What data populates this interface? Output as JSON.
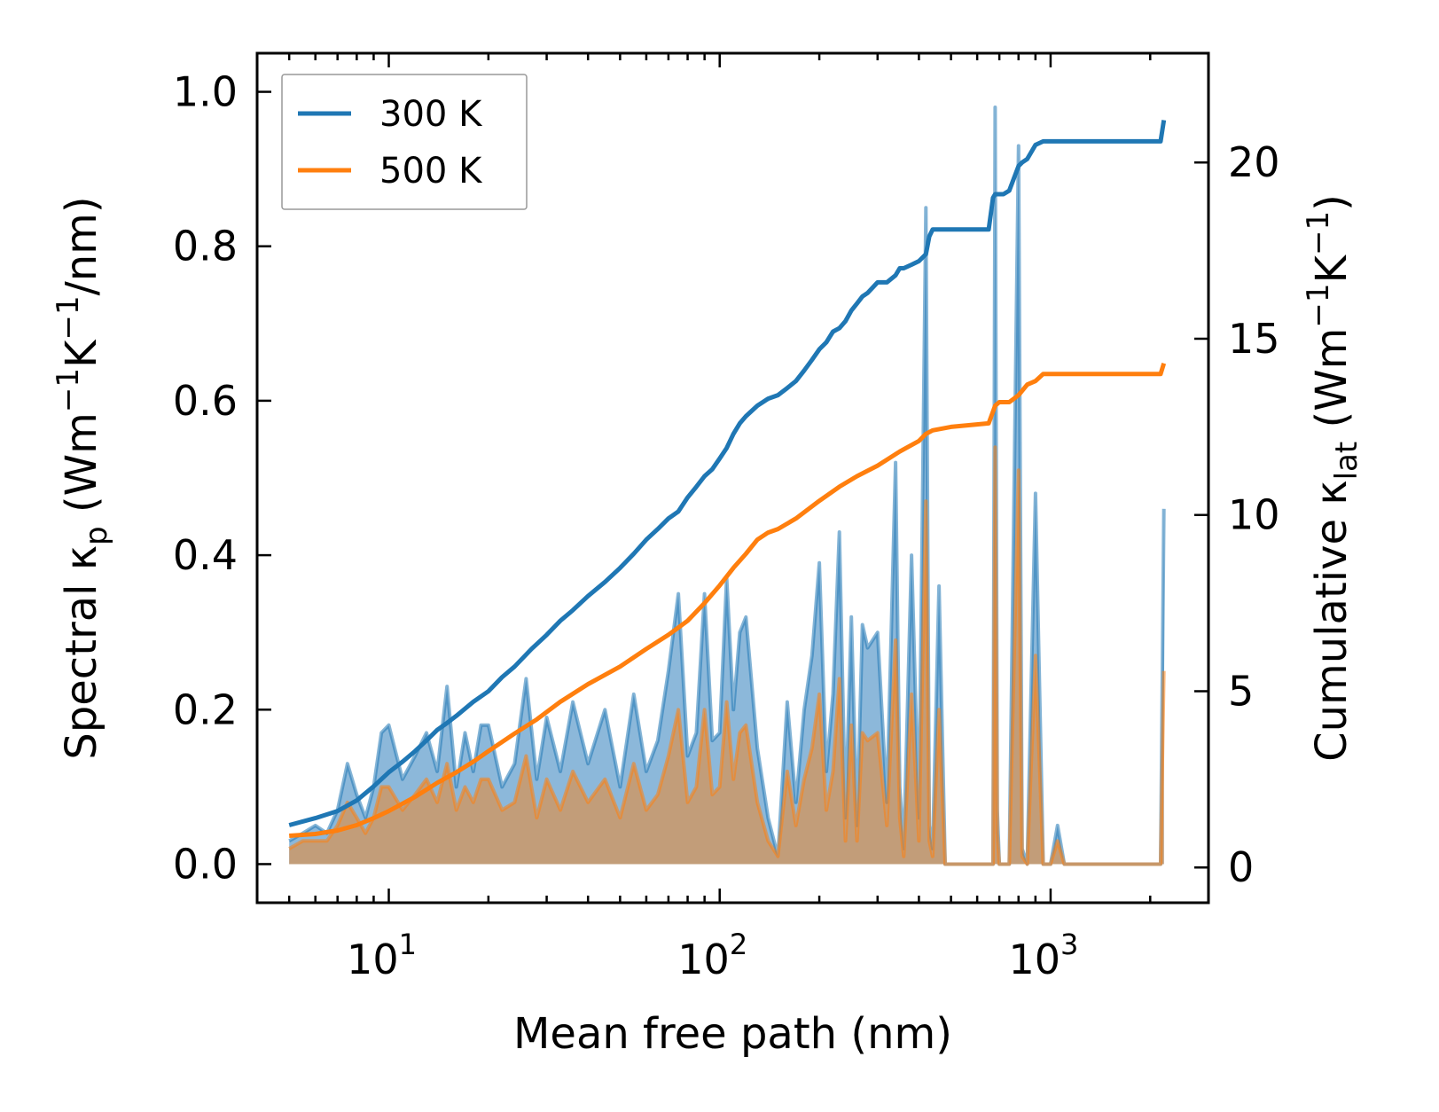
{
  "chart_data": {
    "type": "line",
    "title": "",
    "xlabel": "Mean free path (nm)",
    "ylabel_left": {
      "prefix": "Spectral κ",
      "sub": "p",
      "units_before": " (Wm",
      "sup1": "−1",
      "units_mid": "K",
      "sup2": "−1",
      "units_after": "/nm)"
    },
    "ylabel_right": {
      "prefix": "Cumulative κ",
      "sub": "lat",
      "units_before": " (Wm",
      "sup1": "−1",
      "units_mid": "K",
      "sup2": "−1",
      "units_after": ")"
    },
    "xscale": "log",
    "xlim": [
      4,
      3000
    ],
    "ylim_left": [
      -0.05,
      1.05
    ],
    "ylim_right": [
      -1.0,
      23.1
    ],
    "x_ticks": [
      {
        "value": 10,
        "base": "10",
        "exp": "1"
      },
      {
        "value": 100,
        "base": "10",
        "exp": "2"
      },
      {
        "value": 1000,
        "base": "10",
        "exp": "3"
      }
    ],
    "y_ticks_left": [
      "0.0",
      "0.2",
      "0.4",
      "0.6",
      "0.8",
      "1.0"
    ],
    "y_ticks_right": [
      "0",
      "5",
      "10",
      "15",
      "20"
    ],
    "legend": {
      "position": "upper-left",
      "entries": [
        "300 K",
        "500 K"
      ]
    },
    "colors": {
      "300 K": "#1f77b4",
      "500 K": "#ff7f0e",
      "300 K fill": "#7fb0d6",
      "500 K fill": "#c89a6e"
    },
    "spectral_x": [
      5,
      5.5,
      6,
      6.5,
      7,
      7.5,
      8,
      8.5,
      9,
      9.5,
      10,
      11,
      12,
      13,
      14,
      15,
      16,
      17,
      18,
      19,
      20,
      22,
      24,
      26,
      28,
      30,
      33,
      36,
      40,
      45,
      50,
      55,
      60,
      65,
      70,
      75,
      80,
      85,
      90,
      95,
      100,
      105,
      110,
      115,
      120,
      130,
      140,
      150,
      160,
      170,
      180,
      190,
      200,
      210,
      220,
      230,
      240,
      250,
      260,
      270,
      280,
      300,
      320,
      340,
      350,
      360,
      380,
      400,
      420,
      430,
      440,
      460,
      480,
      500,
      650,
      670,
      680,
      690,
      700,
      720,
      750,
      800,
      820,
      850,
      900,
      950,
      1000,
      1050,
      1100,
      1150,
      2100,
      2150,
      2200
    ],
    "series": [
      {
        "name": "300 K",
        "spectral": [
          0.03,
          0.04,
          0.05,
          0.04,
          0.07,
          0.13,
          0.09,
          0.06,
          0.1,
          0.17,
          0.18,
          0.11,
          0.14,
          0.17,
          0.12,
          0.23,
          0.1,
          0.17,
          0.12,
          0.18,
          0.18,
          0.1,
          0.13,
          0.24,
          0.11,
          0.19,
          0.12,
          0.21,
          0.13,
          0.2,
          0.1,
          0.22,
          0.12,
          0.16,
          0.25,
          0.35,
          0.14,
          0.17,
          0.35,
          0.16,
          0.17,
          0.37,
          0.2,
          0.3,
          0.32,
          0.15,
          0.06,
          0.01,
          0.21,
          0.08,
          0.2,
          0.27,
          0.39,
          0.12,
          0.22,
          0.43,
          0.06,
          0.32,
          0.05,
          0.31,
          0.28,
          0.3,
          0.08,
          0.52,
          0.1,
          0.02,
          0.4,
          0.06,
          0.85,
          0.05,
          0.02,
          0.36,
          0.0,
          0.0,
          0.0,
          0.0,
          0.98,
          0.07,
          0.0,
          0.0,
          0.0,
          0.93,
          0.02,
          0.0,
          0.48,
          0.0,
          0.0,
          0.05,
          0.0,
          0.0,
          0.0,
          0.0,
          0.46
        ],
        "cum_x": [
          5,
          6,
          7,
          8,
          9,
          10,
          11,
          12,
          13,
          14,
          15,
          16,
          18,
          20,
          22,
          24,
          27,
          30,
          33,
          36,
          40,
          45,
          50,
          55,
          60,
          65,
          70,
          75,
          80,
          85,
          90,
          95,
          100,
          105,
          110,
          115,
          120,
          130,
          140,
          150,
          160,
          170,
          180,
          190,
          200,
          210,
          220,
          230,
          240,
          250,
          260,
          270,
          280,
          300,
          320,
          340,
          350,
          360,
          380,
          400,
          420,
          430,
          440,
          460,
          480,
          500,
          650,
          670,
          680,
          690,
          700,
          720,
          750,
          800,
          820,
          850,
          900,
          950,
          1000,
          1050,
          1100,
          1150,
          2100,
          2150,
          2200
        ],
        "cumulative": [
          1.2,
          1.4,
          1.6,
          1.9,
          2.3,
          2.7,
          3.0,
          3.3,
          3.6,
          3.9,
          4.1,
          4.3,
          4.7,
          5.0,
          5.4,
          5.7,
          6.2,
          6.6,
          7.0,
          7.3,
          7.7,
          8.1,
          8.5,
          8.9,
          9.3,
          9.6,
          9.9,
          10.1,
          10.5,
          10.8,
          11.1,
          11.3,
          11.6,
          11.9,
          12.3,
          12.6,
          12.8,
          13.1,
          13.3,
          13.4,
          13.6,
          13.8,
          14.1,
          14.4,
          14.7,
          14.9,
          15.2,
          15.3,
          15.5,
          15.8,
          16.0,
          16.2,
          16.3,
          16.6,
          16.6,
          16.8,
          17.0,
          17.0,
          17.1,
          17.2,
          17.4,
          17.9,
          18.1,
          18.1,
          18.1,
          18.1,
          18.1,
          19.0,
          19.1,
          19.1,
          19.1,
          19.1,
          19.2,
          19.9,
          20.0,
          20.1,
          20.5,
          20.6,
          20.6,
          20.6,
          20.6,
          20.6,
          20.6,
          20.6,
          21.2
        ]
      },
      {
        "name": "500 K",
        "spectral": [
          0.02,
          0.03,
          0.03,
          0.03,
          0.05,
          0.08,
          0.06,
          0.04,
          0.06,
          0.1,
          0.1,
          0.07,
          0.09,
          0.11,
          0.08,
          0.13,
          0.07,
          0.1,
          0.08,
          0.11,
          0.11,
          0.07,
          0.08,
          0.14,
          0.06,
          0.11,
          0.07,
          0.12,
          0.08,
          0.11,
          0.06,
          0.13,
          0.07,
          0.09,
          0.14,
          0.2,
          0.08,
          0.1,
          0.2,
          0.09,
          0.1,
          0.21,
          0.11,
          0.17,
          0.18,
          0.08,
          0.03,
          0.01,
          0.12,
          0.05,
          0.11,
          0.15,
          0.22,
          0.07,
          0.12,
          0.24,
          0.03,
          0.18,
          0.03,
          0.17,
          0.16,
          0.17,
          0.05,
          0.29,
          0.06,
          0.01,
          0.22,
          0.03,
          0.47,
          0.03,
          0.01,
          0.2,
          0.0,
          0.0,
          0.0,
          0.0,
          0.54,
          0.04,
          0.0,
          0.0,
          0.0,
          0.51,
          0.01,
          0.0,
          0.27,
          0.0,
          0.0,
          0.03,
          0.0,
          0.0,
          0.0,
          0.0,
          0.25
        ],
        "cum_x": [
          5,
          6,
          7,
          8,
          9,
          10,
          12,
          14,
          16,
          18,
          20,
          24,
          28,
          33,
          40,
          50,
          60,
          70,
          80,
          90,
          100,
          110,
          120,
          130,
          140,
          150,
          170,
          200,
          230,
          260,
          300,
          350,
          400,
          420,
          440,
          500,
          650,
          680,
          700,
          750,
          800,
          850,
          900,
          950,
          1000,
          1100,
          2100,
          2150,
          2200
        ],
        "cumulative": [
          0.9,
          0.95,
          1.05,
          1.2,
          1.4,
          1.6,
          2.0,
          2.4,
          2.7,
          3.0,
          3.3,
          3.8,
          4.2,
          4.7,
          5.2,
          5.7,
          6.2,
          6.6,
          7.0,
          7.5,
          8.0,
          8.5,
          8.9,
          9.3,
          9.5,
          9.6,
          9.9,
          10.4,
          10.8,
          11.1,
          11.4,
          11.8,
          12.1,
          12.3,
          12.4,
          12.5,
          12.6,
          13.1,
          13.2,
          13.2,
          13.4,
          13.7,
          13.8,
          14.0,
          14.0,
          14.0,
          14.0,
          14.0,
          14.3
        ]
      }
    ]
  }
}
